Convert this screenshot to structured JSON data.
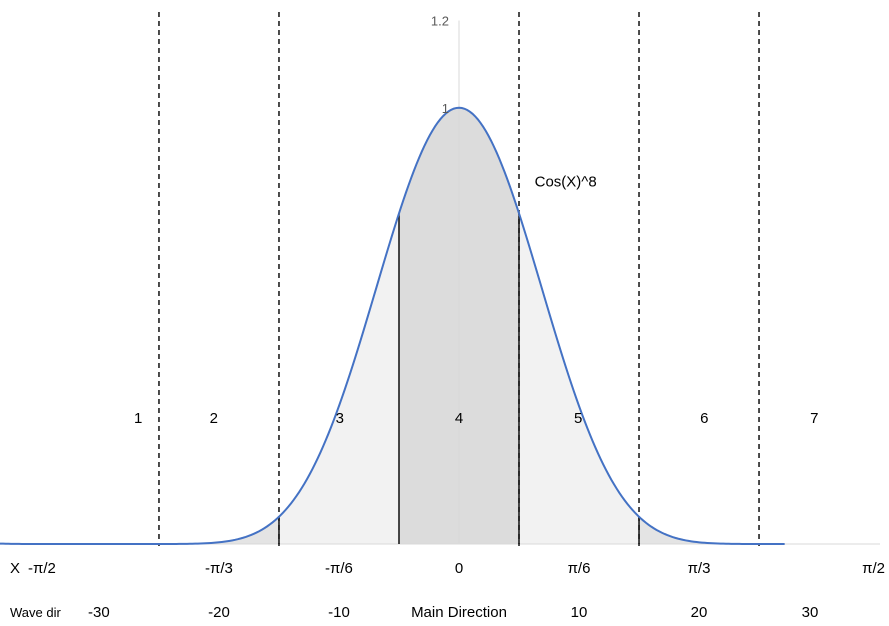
{
  "chart_data": {
    "type": "area",
    "series": [
      {
        "name": "Cos(X)^8",
        "function": "cos(x)^8",
        "color": "#4472C4"
      }
    ],
    "x_range": [
      -1.5708,
      1.5708
    ],
    "ylim": [
      0,
      1.2
    ],
    "y_ticks": [
      {
        "value": 1,
        "label": "1"
      },
      {
        "value": 1.2,
        "label": "1.2"
      }
    ],
    "x_row_label": "X",
    "x_ticks": [
      {
        "value": -1.5708,
        "label": "-π/2"
      },
      {
        "value": -1.0472,
        "label": "-π/3"
      },
      {
        "value": -0.5236,
        "label": "-π/6"
      },
      {
        "value": 0,
        "label": "0"
      },
      {
        "value": 0.5236,
        "label": "π/6"
      },
      {
        "value": 1.0472,
        "label": "π/3"
      },
      {
        "value": 1.5708,
        "label": "π/2"
      }
    ],
    "wave_row_label": "Wave dir",
    "wave_dir_labels": [
      {
        "x": -1.5708,
        "label": "-30"
      },
      {
        "x": -1.0472,
        "label": "-20"
      },
      {
        "x": -0.5236,
        "label": "-10"
      },
      {
        "x": 0,
        "label": "Main Direction"
      },
      {
        "x": 0.5236,
        "label": "10"
      },
      {
        "x": 1.0472,
        "label": "20"
      },
      {
        "x": 1.5708,
        "label": "30"
      }
    ],
    "dashed_boundaries": [
      -1.309,
      -0.7854,
      0.2618,
      0.7854,
      1.309
    ],
    "solid_boundaries": [
      -0.7854,
      -0.2618,
      0.2618,
      0.7854
    ],
    "shaded_regions": [
      {
        "from": -1.309,
        "to": -0.7854,
        "color": "#e4e4e4"
      },
      {
        "from": -0.7854,
        "to": -0.2618,
        "color": "#f2f2f2"
      },
      {
        "from": -0.2618,
        "to": 0.2618,
        "color": "#dcdcdc"
      },
      {
        "from": 0.2618,
        "to": 0.7854,
        "color": "#f2f2f2"
      },
      {
        "from": 0.7854,
        "to": 1.309,
        "color": "#e4e4e4"
      }
    ],
    "sector_labels": [
      {
        "label": "1",
        "x": -1.4
      },
      {
        "label": "2",
        "x": -1.07
      },
      {
        "label": "3",
        "x": -0.52
      },
      {
        "label": "4",
        "x": 0
      },
      {
        "label": "5",
        "x": 0.52
      },
      {
        "label": "6",
        "x": 1.07
      },
      {
        "label": "7",
        "x": 1.55
      }
    ],
    "annotation": {
      "text": "Cos(X)^8",
      "x": 0.33,
      "y": 0.82
    }
  }
}
